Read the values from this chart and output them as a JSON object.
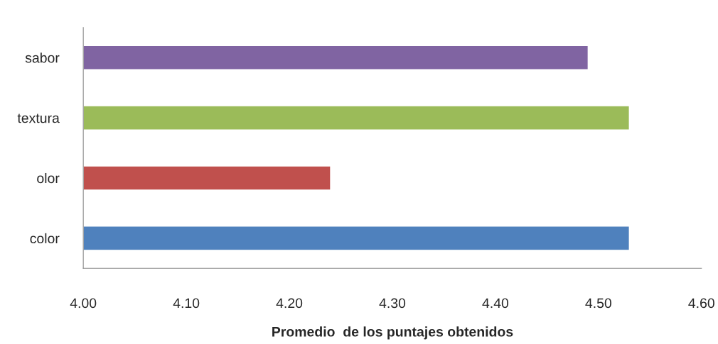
{
  "chart_data": {
    "type": "bar",
    "orientation": "horizontal",
    "xlabel": "Promedio  de los puntajes obtenidos",
    "categories": [
      "sabor",
      "textura",
      "olor",
      "color"
    ],
    "values": [
      4.49,
      4.53,
      4.24,
      4.53
    ],
    "colors": [
      "#8064a2",
      "#9bbb59",
      "#c0504d",
      "#4f81bd"
    ],
    "xlim": [
      4.0,
      4.6
    ],
    "xticks": [
      {
        "value": 4.0,
        "label": "4.00"
      },
      {
        "value": 4.1,
        "label": "4.10"
      },
      {
        "value": 4.2,
        "label": "4.20"
      },
      {
        "value": 4.3,
        "label": "4.30"
      },
      {
        "value": 4.4,
        "label": "4.40"
      },
      {
        "value": 4.5,
        "label": "4.50"
      },
      {
        "value": 4.6,
        "label": "4.60"
      }
    ],
    "grid": false,
    "legend": false
  }
}
